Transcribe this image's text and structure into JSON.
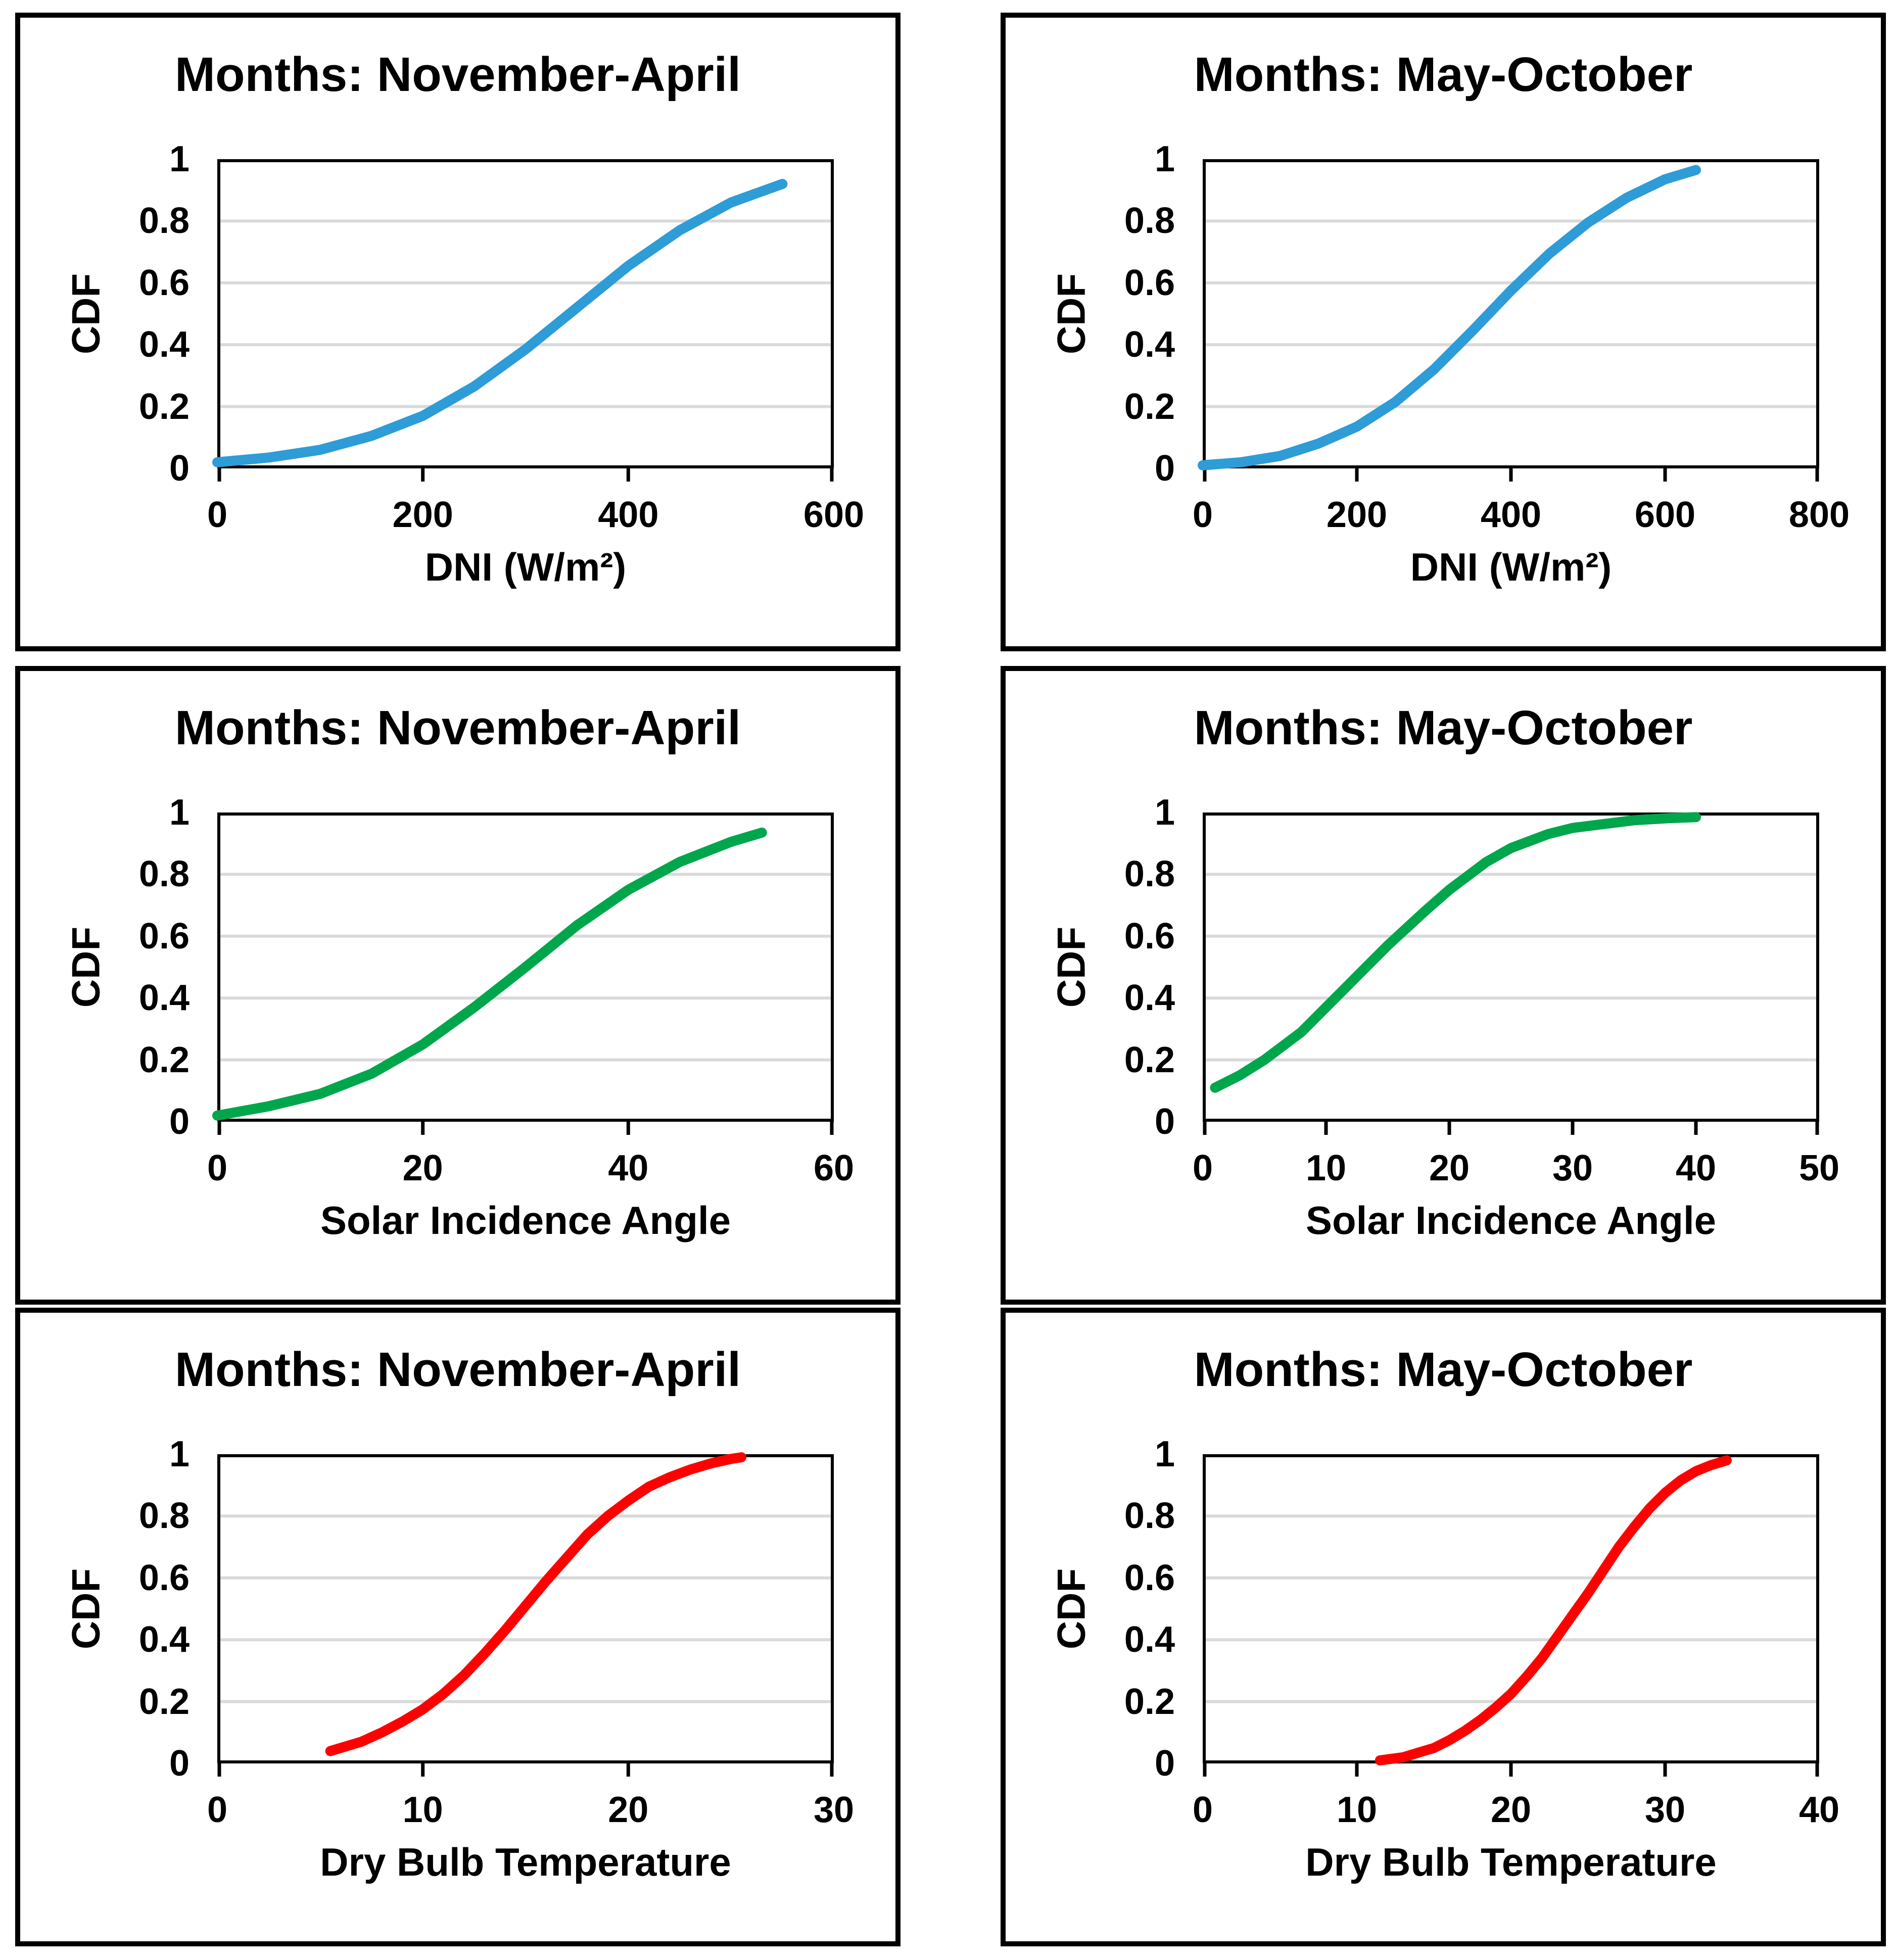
{
  "style": {
    "background": "#FFFFFF",
    "panel_border_color": "#000000",
    "axis_color": "#000000",
    "grid_color": "#D9D9D9",
    "text_color": "#000000",
    "curve_stroke_width": 20,
    "line_colors": {
      "blue": "#2E9CD6",
      "green": "#00A64B",
      "red": "#FF0000"
    }
  },
  "chart_data": [
    {
      "type": "line",
      "title": "Months: November-April",
      "xlabel": "DNI (W/m²)",
      "ylabel": "CDF",
      "xlim": [
        0,
        600
      ],
      "ylim": [
        0,
        1
      ],
      "xticks": [
        0,
        200,
        400,
        600
      ],
      "yticks": [
        0,
        0.2,
        0.4,
        0.6,
        0.8,
        1
      ],
      "grid": "horizontal-only",
      "legend": "none",
      "series": [
        {
          "name": "CDF",
          "color": "#2E9CD6",
          "x": [
            0,
            50,
            100,
            150,
            200,
            250,
            300,
            350,
            400,
            450,
            500,
            550
          ],
          "y": [
            0.02,
            0.035,
            0.06,
            0.105,
            0.17,
            0.265,
            0.385,
            0.52,
            0.655,
            0.77,
            0.86,
            0.92
          ]
        }
      ]
    },
    {
      "type": "line",
      "title": "Months: May-October",
      "xlabel": "DNI (W/m²)",
      "ylabel": "CDF",
      "xlim": [
        0,
        800
      ],
      "ylim": [
        0,
        1
      ],
      "xticks": [
        0,
        200,
        400,
        600,
        800
      ],
      "yticks": [
        0,
        0.2,
        0.4,
        0.6,
        0.8,
        1
      ],
      "grid": "horizontal-only",
      "legend": "none",
      "series": [
        {
          "name": "CDF",
          "color": "#2E9CD6",
          "x": [
            0,
            50,
            100,
            150,
            200,
            250,
            300,
            350,
            400,
            450,
            500,
            550,
            600,
            640
          ],
          "y": [
            0.01,
            0.02,
            0.04,
            0.08,
            0.135,
            0.215,
            0.32,
            0.445,
            0.575,
            0.695,
            0.795,
            0.875,
            0.935,
            0.965
          ]
        }
      ]
    },
    {
      "type": "line",
      "title": "Months: November-April",
      "xlabel": "Solar Incidence Angle",
      "ylabel": "CDF",
      "xlim": [
        0,
        60
      ],
      "ylim": [
        0,
        1
      ],
      "xticks": [
        0,
        20,
        40,
        60
      ],
      "yticks": [
        0,
        0.2,
        0.4,
        0.6,
        0.8,
        1
      ],
      "grid": "horizontal-only",
      "legend": "none",
      "series": [
        {
          "name": "CDF",
          "color": "#00A64B",
          "x": [
            0,
            5,
            10,
            15,
            20,
            25,
            30,
            35,
            40,
            45,
            50,
            53
          ],
          "y": [
            0.02,
            0.05,
            0.09,
            0.155,
            0.25,
            0.37,
            0.5,
            0.635,
            0.75,
            0.84,
            0.905,
            0.935
          ]
        }
      ]
    },
    {
      "type": "line",
      "title": "Months: May-October",
      "xlabel": "Solar Incidence Angle",
      "ylabel": "CDF",
      "xlim": [
        0,
        50
      ],
      "ylim": [
        0,
        1
      ],
      "xticks": [
        0,
        10,
        20,
        30,
        40,
        50
      ],
      "yticks": [
        0,
        0.2,
        0.4,
        0.6,
        0.8,
        1
      ],
      "grid": "horizontal-only",
      "legend": "none",
      "series": [
        {
          "name": "CDF",
          "color": "#00A64B",
          "x": [
            1,
            3,
            5,
            8,
            10,
            13,
            15,
            18,
            20,
            23,
            25,
            28,
            30,
            33,
            35,
            38,
            40
          ],
          "y": [
            0.11,
            0.15,
            0.2,
            0.29,
            0.37,
            0.49,
            0.57,
            0.68,
            0.75,
            0.84,
            0.885,
            0.93,
            0.95,
            0.965,
            0.975,
            0.982,
            0.985
          ]
        }
      ]
    },
    {
      "type": "line",
      "title": "Months: November-April",
      "xlabel": "Dry Bulb Temperature",
      "ylabel": "CDF",
      "xlim": [
        0,
        30
      ],
      "ylim": [
        0,
        1
      ],
      "xticks": [
        0,
        10,
        20,
        30
      ],
      "yticks": [
        0,
        0.2,
        0.4,
        0.6,
        0.8,
        1
      ],
      "grid": "horizontal-only",
      "legend": "none",
      "series": [
        {
          "name": "CDF",
          "color": "#FF0000",
          "x": [
            5.5,
            7,
            8,
            9,
            10,
            11,
            12,
            13,
            14,
            15,
            16,
            17,
            18,
            19,
            20,
            21,
            22,
            23,
            24,
            25,
            25.5
          ],
          "y": [
            0.04,
            0.07,
            0.1,
            0.135,
            0.175,
            0.225,
            0.285,
            0.355,
            0.43,
            0.51,
            0.59,
            0.665,
            0.74,
            0.8,
            0.85,
            0.895,
            0.925,
            0.95,
            0.97,
            0.985,
            0.99
          ]
        }
      ]
    },
    {
      "type": "line",
      "title": "Months: May-October",
      "xlabel": "Dry Bulb Temperature",
      "ylabel": "CDF",
      "xlim": [
        0,
        40
      ],
      "ylim": [
        0,
        1
      ],
      "xticks": [
        0,
        10,
        20,
        30,
        40
      ],
      "yticks": [
        0,
        0.2,
        0.4,
        0.6,
        0.8,
        1
      ],
      "grid": "horizontal-only",
      "legend": "none",
      "series": [
        {
          "name": "CDF",
          "color": "#FF0000",
          "x": [
            11.5,
            13,
            14,
            15,
            16,
            17,
            18,
            19,
            20,
            21,
            22,
            23,
            24,
            25,
            26,
            27,
            28,
            29,
            30,
            31,
            32,
            33,
            34
          ],
          "y": [
            0.01,
            0.02,
            0.035,
            0.05,
            0.075,
            0.105,
            0.14,
            0.18,
            0.225,
            0.28,
            0.34,
            0.41,
            0.48,
            0.55,
            0.625,
            0.7,
            0.765,
            0.825,
            0.875,
            0.915,
            0.945,
            0.965,
            0.98
          ]
        }
      ]
    }
  ]
}
